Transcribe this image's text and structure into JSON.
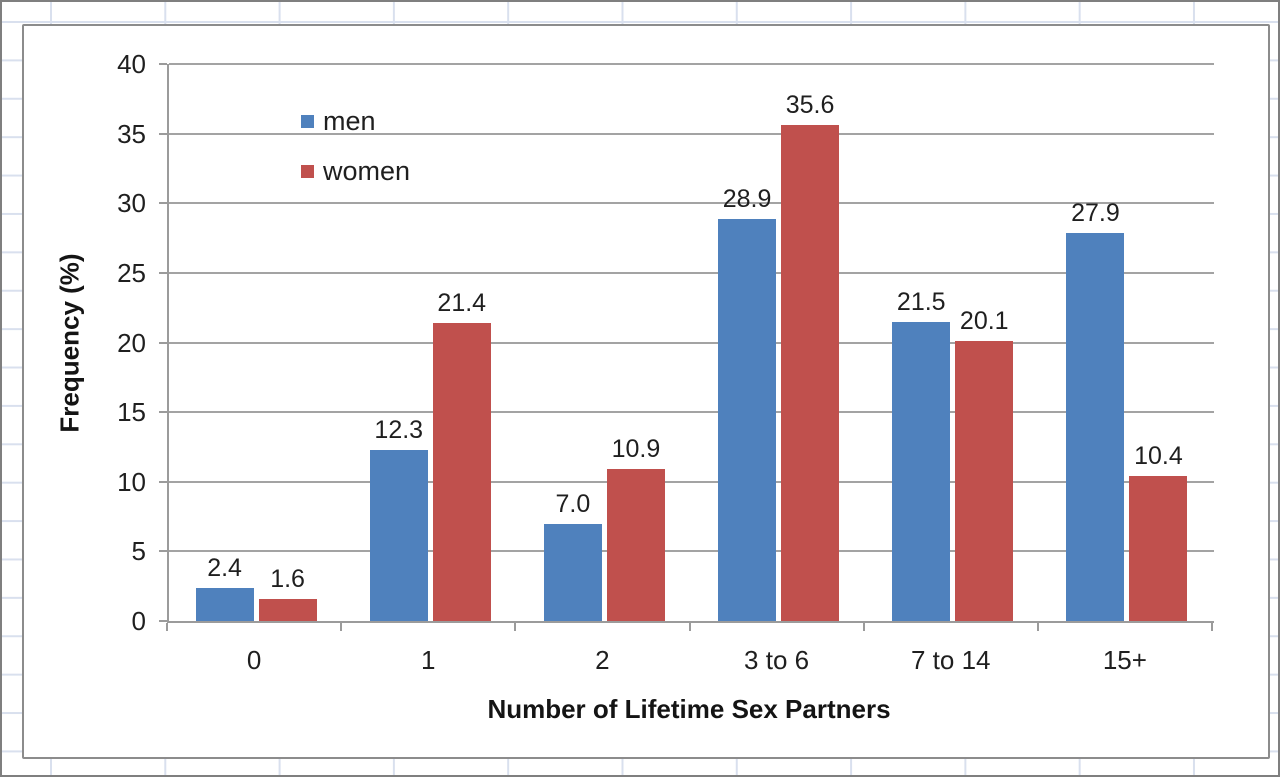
{
  "chart_data": {
    "type": "bar",
    "title": "",
    "categories": [
      "0",
      "1",
      "2",
      "3 to 6",
      "7 to 14",
      "15+"
    ],
    "series": [
      {
        "name": "men",
        "color": "#4F81BD",
        "values": [
          2.4,
          12.3,
          7.0,
          28.9,
          21.5,
          27.9
        ]
      },
      {
        "name": "women",
        "color": "#C0504D",
        "values": [
          1.6,
          21.4,
          10.9,
          35.6,
          20.1,
          10.4
        ]
      }
    ],
    "xlabel": "Number of Lifetime Sex Partners",
    "ylabel": "Frequency (%)",
    "ylim": [
      0,
      40
    ],
    "ytick_step": 5,
    "yticks": [
      0,
      5,
      10,
      15,
      20,
      25,
      30,
      35,
      40
    ],
    "grid": true,
    "data_labels": true,
    "data_label_format": "0.0",
    "legend_position": "top-left-inside"
  },
  "colors": {
    "plot_gridline": "#a3a3a3",
    "axis_line": "#9b9b9b",
    "chart_border": "#8c8c8c",
    "worksheet_gridline": "#d9e0ee",
    "label_text": "#1f1f1f"
  }
}
